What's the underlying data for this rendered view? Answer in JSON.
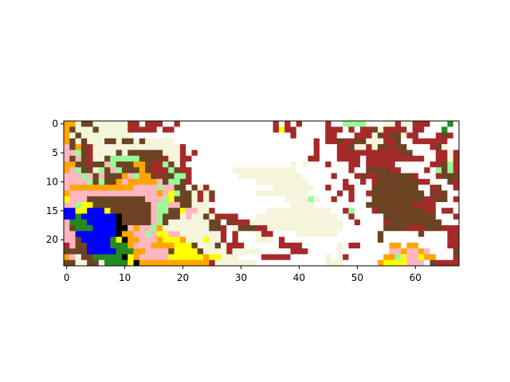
{
  "chart_data": {
    "type": "heatmap",
    "title": "",
    "xlabel": "",
    "ylabel": "",
    "xlim": [
      -0.5,
      67.5
    ],
    "ylim": [
      24.5,
      -0.5
    ],
    "x_ticks": [
      0,
      10,
      20,
      30,
      40,
      50,
      60
    ],
    "y_ticks": [
      0,
      5,
      10,
      15,
      20
    ],
    "grid": false,
    "legend": "none",
    "n_cols": 68,
    "n_rows": 25,
    "palette": {
      "w": "#ffffff",
      "c": "#f5f5dc",
      "r": "#a52a2a",
      "b": "#6b4423",
      "o": "#ffa500",
      "p": "#ffb6c1",
      "g": "#98fb98",
      "y": "#ffff00",
      "u": "#0000ff",
      "k": "#000000",
      "d": "#228b22"
    },
    "rows": [
      "oocbbccccccrrwrrrwwrwwwwwwwwwwwwwwwwrwrwrwwwwrwwggggwwwccrccrrrwwwdw",
      "obcccbcccccrrrrrwrrwwwwwwwwwwwwwwwwwryrrwwwwwrrrwrwrrbcrrrrwrrwwwdw",
      "ocbcccccccccwwwwwwwwwwwwwwwwwwwwwwwwwwwrwwwwwrrwwwrrrcbrbbcrrwwwrbr",
      "obcbcccbbcbbcbcccccwwwwwwwwwwwwwwwwwwwwwwwwrwrrbrrbbcccrrbwwrrrrrrw",
      "pbobrcccccccccccccccrwwwwwwwwwwwwwwwwwwwwwwrwwwrrbccrcbbrbbwwwwrbcw",
      "ppgbrccccbcbbbbbbcccrwrwwwwwwwwwwwwwwwwwwwwrwwwrrrrrrrrrrrbbwwwwrrcr",
      "pbpbrccbgggggbbbbrccrrwwwwwwwwwwwwwwwwwwwwrrwwwrrrrwrrrrrrrrrrwwrrcr",
      "oobbrbbpgbbboobrrgbcrwwwwwwwwwwwwwwwwwwcwcwwwrwwwrrwrrrrrwwwwwwrrbgr",
      "opgbbcgbpgbbbobrrrgbrrwwwwwwwcccccccccccwwwwwwwwwrwwbbbbrrwwwwrwgbgr",
      "pppgpbpbbbopgoobrbbggrwwwwwwwwcccccccccccwwwwwrwwwrbrrbbbbbbrwwwrbbb",
      "ppppgbgbbopooooopbggbrwwwwwwwwwwwcccccccccwwwwwwrwwrwrbbbbbbbrrwwwbr",
      "poooooooooooppppgppbbwbcrwwwwwwwwwwwcccccccwwrwwrrwwwbbbbbbbbwwrbwwr",
      "opppppppppppppppopygbbcrcbwwwwwwwcccccccccwwwwwrwrwwrbbbbbbbbbwbrbww",
      "ypppbbbbbbbbbbpppgybbbcrcrwwwwwwwwwwwwccccgcwwrwwrwwwbbbbbbbbbrrbbwr",
      "ppgyybbbbbbbbbbpggppbbcccwwwwwwwwwwwwwwccccwwwwwwwwwbbbbbbbbrrrrwwww",
      "uuyyuuuybbbbbbbpggbbyppccrwwwwwwwwwcccccccccccwwrgwwwrbbbbbbbbrrwrrw",
      "uuduuuuuukbbbbbpgbbbcpccbcrrrrwwwccccccccccccccwwrwwwwwbbbbbbbbbwwwr",
      "pddduuuuukbbbbbpgbcccccccbbwbrrrccccccccccccccccwwrwwwwrbbbbbbbbbwww",
      "pbddduuuukkpoppgoccccccccbbrwcbbbrrcccccccccccccwwwwwwwbbbbrrrbbbrrr",
      "ppuuuuuuukooppgpyyppcccccccrwrwwwcrrwwwwcccccccwwwwwwwbwwwwwwbwwwwrr",
      "ppbuuuuudykoopppoyyyocccyccrwrwwwcccwrwwwwwwwwwwwwwwwwbwwwwwwwwwwwrr",
      "rpbbuuuudddopppooooyyybcccbwrrrwwwwwwrrrrwwwwwwcwrrwwwwwoowoowwwwwrrw",
      "bbbbuuuuudddooppppbyyyybccccrcccccwwwwwrrrwwwwwcwwwwwwwwppoppopwwwwbb",
      "opcbbdddddkyopppppyyyyyyoyycccwwwwrrrrrwwwwwwcwcrwwwwwwoogyppyoowwwrb",
      "bbccbbcddddykoooooooooooorcccccccwwwwwwwwwwwwcccwwwwwwoyyyypppwbrrrrb"
    ]
  }
}
